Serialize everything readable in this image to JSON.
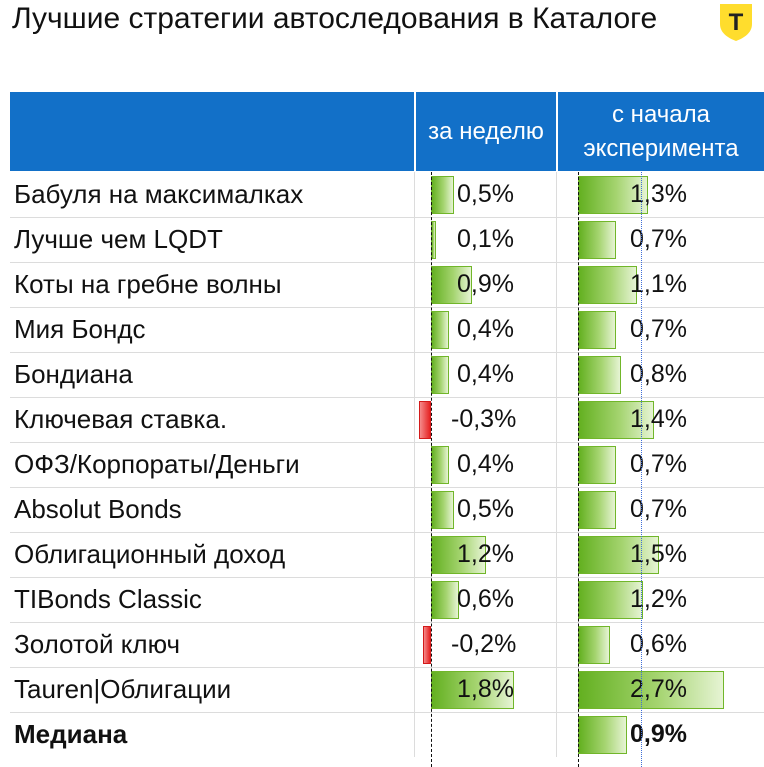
{
  "title": "Лучшие стратегии автоследования в Каталоге",
  "logo": {
    "icon": "tinkoff-t-shield-icon",
    "letter": "Т",
    "color": "#ffdd2d"
  },
  "columns": {
    "week": "за неделю",
    "since_start_line1": "с начала",
    "since_start_line2": "эксперимента"
  },
  "colors": {
    "header": "#1270c8",
    "positive": "#63b020",
    "negative": "#e52222"
  },
  "rows": [
    {
      "name": "Бабуля на максималках",
      "week_label": "0,5%",
      "week": 0.5,
      "start_label": "1,3%",
      "start": 1.3
    },
    {
      "name": "Лучше чем LQDT",
      "week_label": "0,1%",
      "week": 0.1,
      "start_label": "0,7%",
      "start": 0.7
    },
    {
      "name": "Коты на гребне волны",
      "week_label": "0,9%",
      "week": 0.9,
      "start_label": "1,1%",
      "start": 1.1
    },
    {
      "name": "Мия Бондс",
      "week_label": "0,4%",
      "week": 0.4,
      "start_label": "0,7%",
      "start": 0.7
    },
    {
      "name": "Бондиана",
      "week_label": "0,4%",
      "week": 0.4,
      "start_label": "0,8%",
      "start": 0.8
    },
    {
      "name": "Ключевая ставка.",
      "week_label": "-0,3%",
      "week": -0.3,
      "start_label": "1,4%",
      "start": 1.4
    },
    {
      "name": "ОФЗ/Корпораты/Деньги",
      "week_label": "0,4%",
      "week": 0.4,
      "start_label": "0,7%",
      "start": 0.7
    },
    {
      "name": "Absolut Bonds",
      "week_label": "0,5%",
      "week": 0.5,
      "start_label": "0,7%",
      "start": 0.7
    },
    {
      "name": "Облигационный доход",
      "week_label": "1,2%",
      "week": 1.2,
      "start_label": "1,5%",
      "start": 1.5
    },
    {
      "name": "TIBonds Classic",
      "week_label": "0,6%",
      "week": 0.6,
      "start_label": "1,2%",
      "start": 1.2
    },
    {
      "name": "Золотой ключ",
      "week_label": "-0,2%",
      "week": -0.2,
      "start_label": "0,6%",
      "start": 0.6
    },
    {
      "name": "Tauren|Облигации",
      "week_label": "1,8%",
      "week": 1.8,
      "start_label": "2,7%",
      "start": 2.7
    }
  ],
  "median": {
    "name": "Медиана",
    "start_label": "0,9%",
    "start": 0.9
  }
}
